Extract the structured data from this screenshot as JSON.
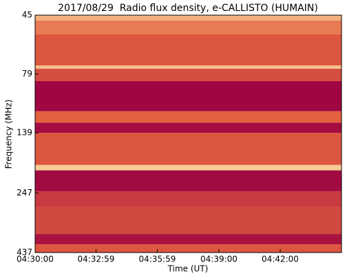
{
  "chart_data": {
    "type": "spectrogram",
    "title": "2017/08/29  Radio flux density, e-CALLISTO (HUMAIN)",
    "xlabel": "Time (UT)",
    "ylabel": "Frequency (MHz)",
    "xlim": [
      0,
      900
    ],
    "xticks": [
      {
        "value": 0,
        "label": "04:30:00"
      },
      {
        "value": 179,
        "label": "04:32:59"
      },
      {
        "value": 359,
        "label": "04:35:59"
      },
      {
        "value": 540,
        "label": "04:39:00"
      },
      {
        "value": 720,
        "label": "04:42:00"
      }
    ],
    "ylim": [
      45,
      437
    ],
    "ylog": true,
    "yinverted": true,
    "yticks": [
      45,
      79,
      139,
      247,
      437
    ],
    "colors": [
      "#9b0042",
      "#e4603f",
      "#fbe7a8"
    ],
    "bands": [
      {
        "from": 45,
        "to": 47.4,
        "level": 0.8
      },
      {
        "from": 47.4,
        "to": 54.1,
        "level": 0.6
      },
      {
        "from": 54.1,
        "to": 72.8,
        "level": 0.45
      },
      {
        "from": 72.8,
        "to": 75.2,
        "level": 0.85
      },
      {
        "from": 75.2,
        "to": 84.7,
        "level": 0.4
      },
      {
        "from": 84.7,
        "to": 113,
        "level": 0.03
      },
      {
        "from": 113,
        "to": 126,
        "level": 0.5
      },
      {
        "from": 126,
        "to": 139,
        "level": 0.06
      },
      {
        "from": 139,
        "to": 189,
        "level": 0.45
      },
      {
        "from": 189,
        "to": 199,
        "level": 0.9
      },
      {
        "from": 199,
        "to": 243,
        "level": 0.05
      },
      {
        "from": 243,
        "to": 281,
        "level": 0.3
      },
      {
        "from": 281,
        "to": 366,
        "level": 0.38
      },
      {
        "from": 366,
        "to": 404,
        "level": 0.1
      },
      {
        "from": 404,
        "to": 437,
        "level": 0.45
      }
    ]
  }
}
